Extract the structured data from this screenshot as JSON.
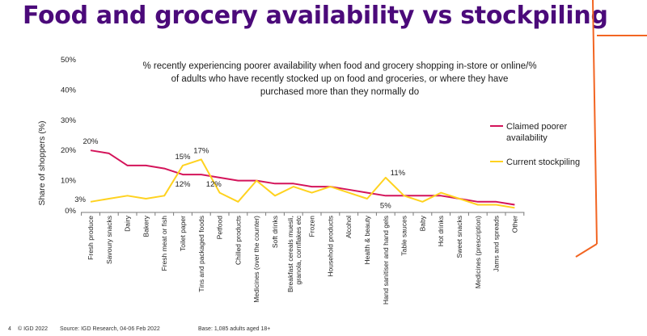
{
  "slide": {
    "title": "Food and grocery availability vs stockpiling",
    "page_number": "4",
    "copyright": "© IGD 2022",
    "source": "Source: IGD Research, 04-06 Feb 2022",
    "base": "Base: 1,085 adults aged 18+"
  },
  "colors": {
    "title": "#4b0a7a",
    "claimed": "#d4145a",
    "stockpiling": "#ffd21f",
    "accent": "#f26522"
  },
  "chart_data": {
    "type": "line",
    "title": "% recently experiencing poorer availability when food and grocery shopping in-store or online/% of adults who have recently stocked up on food and groceries, or where they have purchased more than they normally do",
    "title_lines": [
      "% recently experiencing poorer availability when food and grocery shopping in-store or online/%",
      "of adults who have recently stocked up on food and groceries, or where they have",
      "purchased more than they normally do"
    ],
    "ylabel": "Share of shoppers (%)",
    "xlabel": "",
    "ylim": [
      0,
      50
    ],
    "yticks": [
      0,
      10,
      20,
      30,
      40,
      50
    ],
    "ytick_labels": [
      "0%",
      "10%",
      "20%",
      "30%",
      "40%",
      "50%"
    ],
    "grid": false,
    "legend_position": "right",
    "categories": [
      "Fresh produce",
      "Savoury snacks",
      "Dairy",
      "Bakery",
      "Fresh meat or fish",
      "Toilet paper",
      "Tins and packaged foods",
      "Petfood",
      "Chilled products",
      "Medicines (over the counter)",
      "Soft drinks",
      "Breakfast cereals muesli, granola, cornflakes etc",
      "Frozen",
      "Household products",
      "Alcohol",
      "Health & beauty",
      "Hand sanitiser and hand gels",
      "Table sauces",
      "Baby",
      "Hot drinks",
      "Sweet snacks",
      "Medicines (prescription)",
      "Jams and spreads",
      "Other"
    ],
    "series": [
      {
        "name": "Claimed poorer availability",
        "legend_lines": [
          "Claimed poorer",
          "availability"
        ],
        "color": "#d4145a",
        "values": [
          20,
          19,
          15,
          15,
          14,
          12,
          12,
          11,
          10,
          10,
          9,
          9,
          8,
          8,
          7,
          6,
          5,
          5,
          5,
          5,
          4,
          3,
          3,
          2
        ]
      },
      {
        "name": "Current stockpiling",
        "legend_lines": [
          "Current stockpiling"
        ],
        "color": "#ffd21f",
        "values": [
          3,
          4,
          5,
          4,
          5,
          15,
          17,
          6,
          3,
          10,
          5,
          8,
          6,
          8,
          6,
          4,
          11,
          5,
          3,
          6,
          4,
          2,
          2,
          1
        ]
      }
    ],
    "data_labels": [
      {
        "text": "20%",
        "series": 0,
        "index": 0,
        "anchor": "above"
      },
      {
        "text": "3%",
        "series": 1,
        "index": 0,
        "anchor": "left"
      },
      {
        "text": "15%",
        "series": 1,
        "index": 5,
        "anchor": "above"
      },
      {
        "text": "17%",
        "series": 1,
        "index": 6,
        "anchor": "above"
      },
      {
        "text": "12%",
        "series": 0,
        "index": 5,
        "anchor": "below"
      },
      {
        "text": "12%",
        "series": 0,
        "index": 6,
        "anchor": "below-right"
      },
      {
        "text": "11%",
        "series": 1,
        "index": 16,
        "anchor": "right"
      },
      {
        "text": "5%",
        "series": 0,
        "index": 16,
        "anchor": "below"
      }
    ]
  }
}
